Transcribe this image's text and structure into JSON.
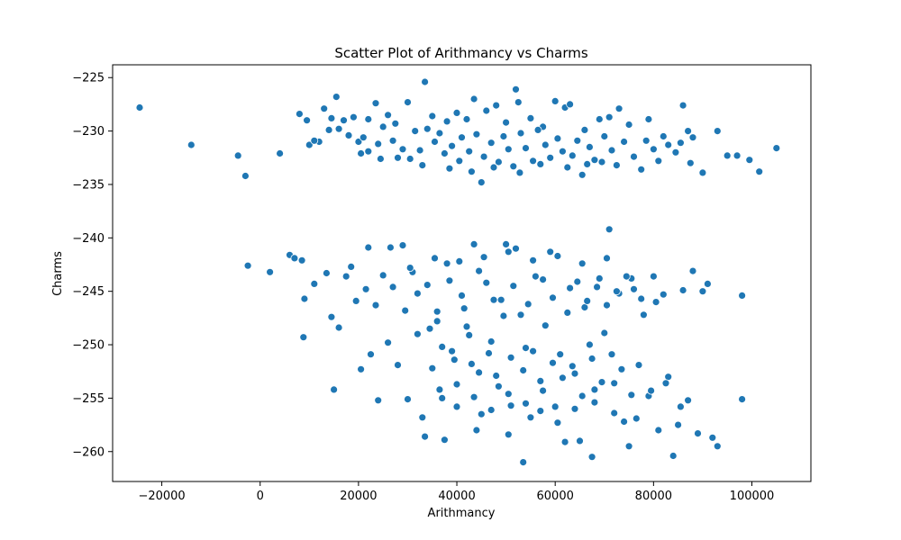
{
  "chart_data": {
    "type": "scatter",
    "title": "Scatter Plot of Arithmancy vs Charms",
    "xlabel": "Arithmancy",
    "ylabel": "Charms",
    "xlim": [
      -30000,
      112000
    ],
    "ylim": [
      -262.8,
      -223.8
    ],
    "xticks": [
      -20000,
      0,
      20000,
      40000,
      60000,
      80000,
      100000
    ],
    "xtick_labels": [
      "−20000",
      "0",
      "20000",
      "40000",
      "60000",
      "80000",
      "100000"
    ],
    "yticks": [
      -260,
      -255,
      -250,
      -245,
      -240,
      -235,
      -230,
      -225
    ],
    "ytick_labels": [
      "−260",
      "−255",
      "−250",
      "−245",
      "−240",
      "−235",
      "−230",
      "−225"
    ],
    "grid": false,
    "marker_color": "#1f77b4",
    "marker_edge": "#ffffff",
    "points": [
      [
        -24500,
        -227.8
      ],
      [
        -14000,
        -231.3
      ],
      [
        -4500,
        -232.3
      ],
      [
        -3000,
        -234.2
      ],
      [
        4000,
        -232.1
      ],
      [
        8000,
        -228.4
      ],
      [
        9500,
        -229.0
      ],
      [
        12000,
        -231.0
      ],
      [
        13000,
        -227.9
      ],
      [
        15500,
        -226.8
      ],
      [
        14500,
        -228.8
      ],
      [
        16000,
        -229.8
      ],
      [
        17000,
        -229.0
      ],
      [
        19000,
        -228.7
      ],
      [
        22000,
        -228.9
      ],
      [
        23500,
        -227.4
      ],
      [
        26000,
        -228.5
      ],
      [
        27500,
        -229.3
      ],
      [
        30000,
        -227.3
      ],
      [
        33500,
        -225.4
      ],
      [
        35000,
        -228.6
      ],
      [
        38000,
        -229.1
      ],
      [
        40000,
        -228.3
      ],
      [
        42000,
        -228.9
      ],
      [
        43500,
        -227.0
      ],
      [
        46000,
        -228.1
      ],
      [
        48000,
        -227.6
      ],
      [
        50000,
        -229.2
      ],
      [
        52000,
        -226.1
      ],
      [
        52500,
        -227.3
      ],
      [
        55000,
        -228.8
      ],
      [
        57500,
        -229.6
      ],
      [
        60000,
        -227.2
      ],
      [
        62000,
        -227.8
      ],
      [
        63000,
        -227.5
      ],
      [
        66000,
        -229.9
      ],
      [
        69000,
        -228.9
      ],
      [
        71000,
        -228.7
      ],
      [
        73000,
        -227.9
      ],
      [
        75000,
        -229.4
      ],
      [
        79000,
        -228.9
      ],
      [
        82000,
        -230.5
      ],
      [
        86000,
        -227.6
      ],
      [
        87000,
        -230.0
      ],
      [
        93000,
        -230.0
      ],
      [
        95000,
        -232.3
      ],
      [
        97000,
        -232.3
      ],
      [
        99500,
        -232.7
      ],
      [
        101500,
        -233.8
      ],
      [
        105000,
        -231.6
      ],
      [
        10000,
        -231.3
      ],
      [
        11000,
        -230.9
      ],
      [
        14000,
        -229.9
      ],
      [
        18000,
        -230.4
      ],
      [
        20000,
        -231.0
      ],
      [
        21000,
        -230.6
      ],
      [
        22000,
        -231.9
      ],
      [
        24000,
        -231.2
      ],
      [
        25000,
        -229.6
      ],
      [
        27000,
        -230.9
      ],
      [
        28000,
        -232.5
      ],
      [
        29000,
        -231.7
      ],
      [
        30500,
        -232.6
      ],
      [
        31500,
        -230.0
      ],
      [
        32500,
        -231.8
      ],
      [
        34000,
        -229.8
      ],
      [
        35500,
        -231.0
      ],
      [
        36500,
        -230.2
      ],
      [
        37500,
        -232.1
      ],
      [
        39000,
        -231.4
      ],
      [
        40500,
        -232.8
      ],
      [
        41000,
        -230.6
      ],
      [
        42500,
        -231.9
      ],
      [
        44000,
        -230.3
      ],
      [
        45000,
        -234.8
      ],
      [
        45500,
        -232.4
      ],
      [
        47000,
        -231.1
      ],
      [
        48500,
        -232.9
      ],
      [
        49500,
        -230.5
      ],
      [
        50500,
        -231.7
      ],
      [
        51500,
        -233.3
      ],
      [
        53000,
        -230.2
      ],
      [
        54000,
        -231.6
      ],
      [
        55500,
        -232.8
      ],
      [
        56500,
        -229.9
      ],
      [
        58000,
        -231.3
      ],
      [
        59000,
        -232.5
      ],
      [
        60500,
        -230.7
      ],
      [
        61500,
        -231.9
      ],
      [
        63500,
        -232.3
      ],
      [
        64500,
        -230.9
      ],
      [
        65500,
        -234.1
      ],
      [
        67000,
        -231.5
      ],
      [
        68000,
        -232.7
      ],
      [
        70000,
        -230.5
      ],
      [
        71500,
        -231.8
      ],
      [
        72500,
        -233.2
      ],
      [
        74000,
        -231.0
      ],
      [
        76000,
        -232.4
      ],
      [
        77500,
        -233.6
      ],
      [
        78500,
        -230.9
      ],
      [
        80000,
        -231.7
      ],
      [
        81000,
        -232.8
      ],
      [
        83000,
        -231.3
      ],
      [
        84500,
        -232.0
      ],
      [
        85500,
        -231.1
      ],
      [
        87500,
        -233.0
      ],
      [
        88000,
        -230.6
      ],
      [
        90000,
        -233.9
      ],
      [
        38500,
        -233.5
      ],
      [
        43000,
        -233.8
      ],
      [
        47500,
        -233.4
      ],
      [
        52800,
        -233.9
      ],
      [
        57000,
        -233.1
      ],
      [
        62500,
        -233.4
      ],
      [
        66500,
        -233.1
      ],
      [
        69500,
        -232.9
      ],
      [
        24500,
        -232.6
      ],
      [
        33000,
        -233.2
      ],
      [
        20500,
        -232.1
      ],
      [
        -2500,
        -242.6
      ],
      [
        2000,
        -243.2
      ],
      [
        6000,
        -241.6
      ],
      [
        7000,
        -241.9
      ],
      [
        8500,
        -242.1
      ],
      [
        9000,
        -245.7
      ],
      [
        8800,
        -249.3
      ],
      [
        11000,
        -244.3
      ],
      [
        13500,
        -243.3
      ],
      [
        14500,
        -247.4
      ],
      [
        15000,
        -254.2
      ],
      [
        16000,
        -248.4
      ],
      [
        17500,
        -243.6
      ],
      [
        18500,
        -242.7
      ],
      [
        19500,
        -245.9
      ],
      [
        20500,
        -252.3
      ],
      [
        21500,
        -244.8
      ],
      [
        22000,
        -240.9
      ],
      [
        22500,
        -250.9
      ],
      [
        23500,
        -246.3
      ],
      [
        24000,
        -255.2
      ],
      [
        25000,
        -243.5
      ],
      [
        26000,
        -249.8
      ],
      [
        26500,
        -240.9
      ],
      [
        27000,
        -244.6
      ],
      [
        28000,
        -251.9
      ],
      [
        29000,
        -240.7
      ],
      [
        29500,
        -246.8
      ],
      [
        30000,
        -255.1
      ],
      [
        31000,
        -243.2
      ],
      [
        32000,
        -249.0
      ],
      [
        33000,
        -256.8
      ],
      [
        33500,
        -258.6
      ],
      [
        34000,
        -244.4
      ],
      [
        35000,
        -252.2
      ],
      [
        36000,
        -247.8
      ],
      [
        37000,
        -255.0
      ],
      [
        37500,
        -258.9
      ],
      [
        38000,
        -242.4
      ],
      [
        39000,
        -250.6
      ],
      [
        40000,
        -253.7
      ],
      [
        41000,
        -245.4
      ],
      [
        42000,
        -248.3
      ],
      [
        43000,
        -251.8
      ],
      [
        43500,
        -240.6
      ],
      [
        44000,
        -258.0
      ],
      [
        45000,
        -256.5
      ],
      [
        46000,
        -244.2
      ],
      [
        47000,
        -249.7
      ],
      [
        48000,
        -252.9
      ],
      [
        49000,
        -245.8
      ],
      [
        50000,
        -240.6
      ],
      [
        50500,
        -258.4
      ],
      [
        51000,
        -255.7
      ],
      [
        52000,
        -241.0
      ],
      [
        53000,
        -247.2
      ],
      [
        53500,
        -261.0
      ],
      [
        54000,
        -250.3
      ],
      [
        55000,
        -256.8
      ],
      [
        56000,
        -243.6
      ],
      [
        57000,
        -253.4
      ],
      [
        58000,
        -248.2
      ],
      [
        59000,
        -241.3
      ],
      [
        60000,
        -255.8
      ],
      [
        61000,
        -250.9
      ],
      [
        62000,
        -259.1
      ],
      [
        63000,
        -244.7
      ],
      [
        64000,
        -252.7
      ],
      [
        65000,
        -259.0
      ],
      [
        66000,
        -246.5
      ],
      [
        67000,
        -250.0
      ],
      [
        67500,
        -260.5
      ],
      [
        68000,
        -254.2
      ],
      [
        69000,
        -243.8
      ],
      [
        70000,
        -248.9
      ],
      [
        71000,
        -239.2
      ],
      [
        72000,
        -253.6
      ],
      [
        73000,
        -245.2
      ],
      [
        74000,
        -257.2
      ],
      [
        75000,
        -259.5
      ],
      [
        76000,
        -244.8
      ],
      [
        77000,
        -251.9
      ],
      [
        78000,
        -247.2
      ],
      [
        79000,
        -254.8
      ],
      [
        80000,
        -243.6
      ],
      [
        81000,
        -258.0
      ],
      [
        82000,
        -245.3
      ],
      [
        83000,
        -253.0
      ],
      [
        84000,
        -260.4
      ],
      [
        85000,
        -257.5
      ],
      [
        86000,
        -244.9
      ],
      [
        87000,
        -255.2
      ],
      [
        88000,
        -243.1
      ],
      [
        89000,
        -258.3
      ],
      [
        90000,
        -245.0
      ],
      [
        91000,
        -244.3
      ],
      [
        92000,
        -258.7
      ],
      [
        93000,
        -259.5
      ],
      [
        98000,
        -245.4
      ],
      [
        98000,
        -255.1
      ],
      [
        30500,
        -242.8
      ],
      [
        35500,
        -241.9
      ],
      [
        40500,
        -242.2
      ],
      [
        45500,
        -241.8
      ],
      [
        50500,
        -241.3
      ],
      [
        55500,
        -242.1
      ],
      [
        60500,
        -241.7
      ],
      [
        65500,
        -242.4
      ],
      [
        70500,
        -241.9
      ],
      [
        75500,
        -243.8
      ],
      [
        32000,
        -245.2
      ],
      [
        36000,
        -246.9
      ],
      [
        38500,
        -244.0
      ],
      [
        41500,
        -246.6
      ],
      [
        44500,
        -243.1
      ],
      [
        47500,
        -245.8
      ],
      [
        49500,
        -247.3
      ],
      [
        51500,
        -244.5
      ],
      [
        54500,
        -246.2
      ],
      [
        57500,
        -243.9
      ],
      [
        59500,
        -245.6
      ],
      [
        62500,
        -247.0
      ],
      [
        64500,
        -244.1
      ],
      [
        66500,
        -245.9
      ],
      [
        68500,
        -244.6
      ],
      [
        70500,
        -246.3
      ],
      [
        72500,
        -245.0
      ],
      [
        74500,
        -243.6
      ],
      [
        77500,
        -245.7
      ],
      [
        80500,
        -246.0
      ],
      [
        34500,
        -248.5
      ],
      [
        37000,
        -250.2
      ],
      [
        39500,
        -251.4
      ],
      [
        42500,
        -249.1
      ],
      [
        44500,
        -252.6
      ],
      [
        46500,
        -250.8
      ],
      [
        48500,
        -253.9
      ],
      [
        51000,
        -251.2
      ],
      [
        53500,
        -252.4
      ],
      [
        55500,
        -250.6
      ],
      [
        57500,
        -254.3
      ],
      [
        59500,
        -251.7
      ],
      [
        61500,
        -253.1
      ],
      [
        63500,
        -252.0
      ],
      [
        65500,
        -254.8
      ],
      [
        67500,
        -251.3
      ],
      [
        69500,
        -253.5
      ],
      [
        71500,
        -250.9
      ],
      [
        73500,
        -252.3
      ],
      [
        75500,
        -254.7
      ],
      [
        36500,
        -254.2
      ],
      [
        40000,
        -255.8
      ],
      [
        43500,
        -254.9
      ],
      [
        47000,
        -256.1
      ],
      [
        50500,
        -254.6
      ],
      [
        54000,
        -255.5
      ],
      [
        57000,
        -256.2
      ],
      [
        60500,
        -257.3
      ],
      [
        64000,
        -256.0
      ],
      [
        68000,
        -255.4
      ],
      [
        72000,
        -256.4
      ],
      [
        76500,
        -256.9
      ],
      [
        79500,
        -254.3
      ],
      [
        82500,
        -253.6
      ],
      [
        85500,
        -255.8
      ]
    ]
  }
}
